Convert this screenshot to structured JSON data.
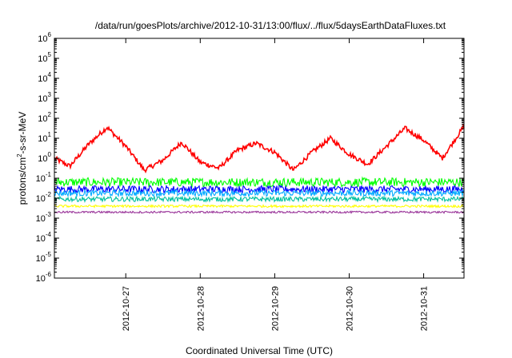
{
  "chart_data": {
    "type": "line",
    "title": "/data/run/goesPlots/archive/2012-10-31/13:00/flux/../flux/5daysEarthDataFluxes.txt",
    "xlabel": "Coordinated Universal Time (UTC)",
    "ylabel": "protons/cm²-s-sr-MeV",
    "ylabel_parts": {
      "pre": "protons/cm",
      "sup": "2",
      "post": "-s-sr-MeV"
    },
    "y_scale": "log",
    "ylim_exp": [
      -6,
      6
    ],
    "y_ticks": [
      {
        "base": "10",
        "exp": "-6"
      },
      {
        "base": "10",
        "exp": "-5"
      },
      {
        "base": "10",
        "exp": "-4"
      },
      {
        "base": "10",
        "exp": "-3"
      },
      {
        "base": "10",
        "exp": "-2"
      },
      {
        "base": "10",
        "exp": "-1"
      },
      {
        "base": "10",
        "exp": "0"
      },
      {
        "base": "10",
        "exp": "1"
      },
      {
        "base": "10",
        "exp": "2"
      },
      {
        "base": "10",
        "exp": "3"
      },
      {
        "base": "10",
        "exp": "4"
      },
      {
        "base": "10",
        "exp": "5"
      },
      {
        "base": "10",
        "exp": "6"
      }
    ],
    "x_range": [
      "2012-10-26 01:00",
      "2012-10-31 13:00"
    ],
    "x_ticks": [
      "2012-10-27",
      "2012-10-28",
      "2012-10-29",
      "2012-10-30",
      "2012-10-31"
    ],
    "grid": false,
    "legend": "none",
    "series_colors": [
      "#ff0000",
      "#00ff00",
      "#0000ff",
      "#00aaff",
      "#00c0a0",
      "#ffff00",
      "#993399"
    ],
    "series": [
      {
        "color": "#ff0000",
        "x": [
          "2012-10-26 01:00",
          "2012-10-26 06:00",
          "2012-10-26 12:00",
          "2012-10-26 18:00",
          "2012-10-27 00:00",
          "2012-10-27 06:00",
          "2012-10-27 12:00",
          "2012-10-27 18:00",
          "2012-10-28 00:00",
          "2012-10-28 06:00",
          "2012-10-28 12:00",
          "2012-10-28 18:00",
          "2012-10-29 00:00",
          "2012-10-29 06:00",
          "2012-10-29 12:00",
          "2012-10-29 18:00",
          "2012-10-30 00:00",
          "2012-10-30 06:00",
          "2012-10-30 12:00",
          "2012-10-30 18:00",
          "2012-10-31 00:00",
          "2012-10-31 06:00",
          "2012-10-31 13:00"
        ],
        "y_log10": [
          0,
          -0.4,
          0.7,
          1.55,
          0.6,
          -0.6,
          -0.1,
          0.8,
          -0.2,
          -0.5,
          0.4,
          0.75,
          0.3,
          -0.6,
          0.3,
          1.0,
          0.2,
          -0.3,
          0.6,
          1.5,
          0.9,
          0,
          1.6
        ]
      },
      {
        "color": "#00ff00",
        "x": [
          "2012-10-26 01:00",
          "2012-10-31 13:00"
        ],
        "y_log10": [
          -1.2,
          -1.2
        ]
      },
      {
        "color": "#0000ff",
        "x": [
          "2012-10-26 01:00",
          "2012-10-31 13:00"
        ],
        "y_log10": [
          -1.55,
          -1.55
        ]
      },
      {
        "color": "#00aaff",
        "x": [
          "2012-10-26 01:00",
          "2012-10-31 13:00"
        ],
        "y_log10": [
          -1.75,
          -1.75
        ]
      },
      {
        "color": "#00c0a0",
        "x": [
          "2012-10-26 01:00",
          "2012-10-31 13:00"
        ],
        "y_log10": [
          -2.05,
          -2.05
        ]
      },
      {
        "color": "#ffff00",
        "x": [
          "2012-10-26 01:00",
          "2012-10-31 13:00"
        ],
        "y_log10": [
          -2.4,
          -2.4
        ]
      },
      {
        "color": "#993399",
        "x": [
          "2012-10-26 01:00",
          "2012-10-31 13:00"
        ],
        "y_log10": [
          -2.7,
          -2.7
        ]
      }
    ]
  }
}
